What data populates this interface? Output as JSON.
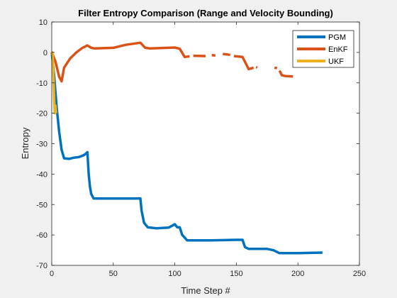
{
  "chart_data": {
    "type": "line",
    "title": "Filter Entropy Comparison (Range and Velocity Bounding)",
    "xlabel": "Time Step #",
    "ylabel": "Entropy",
    "xlim": [
      0,
      250
    ],
    "ylim": [
      -70,
      10
    ],
    "xticks": [
      0,
      50,
      100,
      150,
      200,
      250
    ],
    "yticks": [
      10,
      0,
      -10,
      -20,
      -30,
      -40,
      -50,
      -60,
      -70
    ],
    "grid": false,
    "legend_position": "top-right",
    "series": [
      {
        "name": "PGM",
        "color": "#0072BD",
        "segments": [
          [
            [
              0,
              0
            ],
            [
              2,
              -8
            ],
            [
              4,
              -18
            ],
            [
              6,
              -26
            ],
            [
              8,
              -32
            ],
            [
              10,
              -34.8
            ],
            [
              14,
              -35
            ],
            [
              18,
              -34.6
            ],
            [
              22,
              -34.4
            ],
            [
              26,
              -33.8
            ],
            [
              28,
              -33.2
            ],
            [
              29,
              -32.8
            ],
            [
              30,
              -40
            ],
            [
              31,
              -44
            ],
            [
              32,
              -46.5
            ],
            [
              34,
              -48
            ],
            [
              50,
              -48
            ],
            [
              72,
              -48
            ],
            [
              73,
              -52
            ],
            [
              75,
              -56
            ],
            [
              78,
              -57.5
            ],
            [
              85,
              -57.8
            ],
            [
              95,
              -57.6
            ],
            [
              100,
              -56.5
            ],
            [
              102,
              -57.5
            ],
            [
              104,
              -57.5
            ],
            [
              106,
              -60
            ],
            [
              110,
              -61.8
            ],
            [
              130,
              -61.8
            ],
            [
              150,
              -61.6
            ],
            [
              155,
              -61.6
            ],
            [
              157,
              -64
            ],
            [
              160,
              -64.6
            ],
            [
              175,
              -64.6
            ],
            [
              180,
              -65
            ],
            [
              185,
              -66
            ],
            [
              200,
              -66
            ],
            [
              220,
              -65.8
            ]
          ]
        ]
      },
      {
        "name": "EnKF",
        "color": "#D95319",
        "segments": [
          [
            [
              0,
              0
            ],
            [
              3,
              -3
            ],
            [
              6,
              -8
            ],
            [
              8,
              -9.5
            ],
            [
              10,
              -5
            ],
            [
              15,
              -2
            ],
            [
              20,
              0
            ],
            [
              25,
              1.5
            ],
            [
              29,
              2.3
            ],
            [
              32,
              1.5
            ],
            [
              35,
              1.3
            ],
            [
              50,
              1.5
            ],
            [
              60,
              2.5
            ],
            [
              72,
              3.2
            ],
            [
              76,
              1.5
            ],
            [
              80,
              1.3
            ],
            [
              100,
              1.6
            ],
            [
              104,
              1.2
            ],
            [
              108,
              -1.5
            ],
            [
              112,
              -1.3
            ]
          ],
          [
            [
              115,
              -1.1
            ],
            [
              125,
              -1.2
            ]
          ],
          [
            [
              130,
              -0.9
            ],
            [
              133,
              -1
            ]
          ],
          [
            [
              139,
              -0.5
            ],
            [
              145,
              -0.8
            ]
          ],
          [
            [
              148,
              -1.2
            ],
            [
              155,
              -1.5
            ],
            [
              160,
              -5.5
            ],
            [
              164,
              -5
            ]
          ],
          [
            [
              166,
              -4.8
            ],
            [
              167,
              -5
            ]
          ],
          [
            [
              181,
              -5
            ],
            [
              183,
              -5.2
            ]
          ],
          [
            [
              185,
              -6
            ],
            [
              187,
              -7.5
            ],
            [
              190,
              -7.8
            ],
            [
              196,
              -7.9
            ]
          ]
        ]
      },
      {
        "name": "UKF",
        "color": "#EDB120",
        "segments": [
          [
            [
              0,
              -1
            ],
            [
              0.5,
              0
            ],
            [
              1,
              -3
            ],
            [
              1.5,
              -9
            ],
            [
              2,
              -16
            ],
            [
              2.5,
              -20
            ],
            [
              3,
              -17.5
            ],
            [
              3.5,
              -20
            ]
          ]
        ]
      }
    ]
  }
}
